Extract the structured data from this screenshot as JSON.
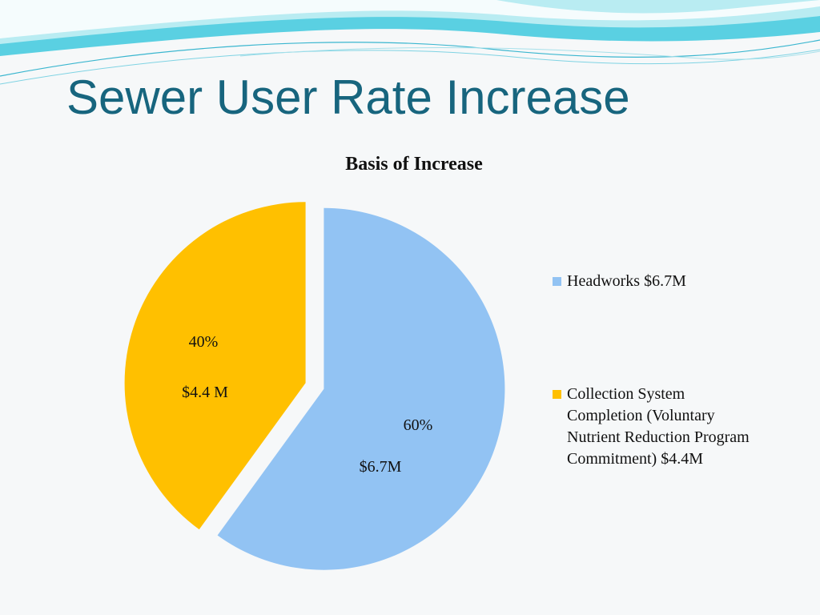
{
  "slide": {
    "title": "Sewer User Rate Increase"
  },
  "chart_data": {
    "type": "pie",
    "title": "Basis of Increase",
    "slices": [
      {
        "name": "Headworks $6.7M",
        "value": 60,
        "percent_label": "60%",
        "amount_label": "$6.7M",
        "color": "#92c3f3"
      },
      {
        "name": "Collection System Completion (Voluntary Nutrient Reduction Program Commitment) $4.4M",
        "value": 40,
        "percent_label": "40%",
        "amount_label": "$4.4 M",
        "color": "#ffc000"
      }
    ],
    "legend_position": "right"
  }
}
